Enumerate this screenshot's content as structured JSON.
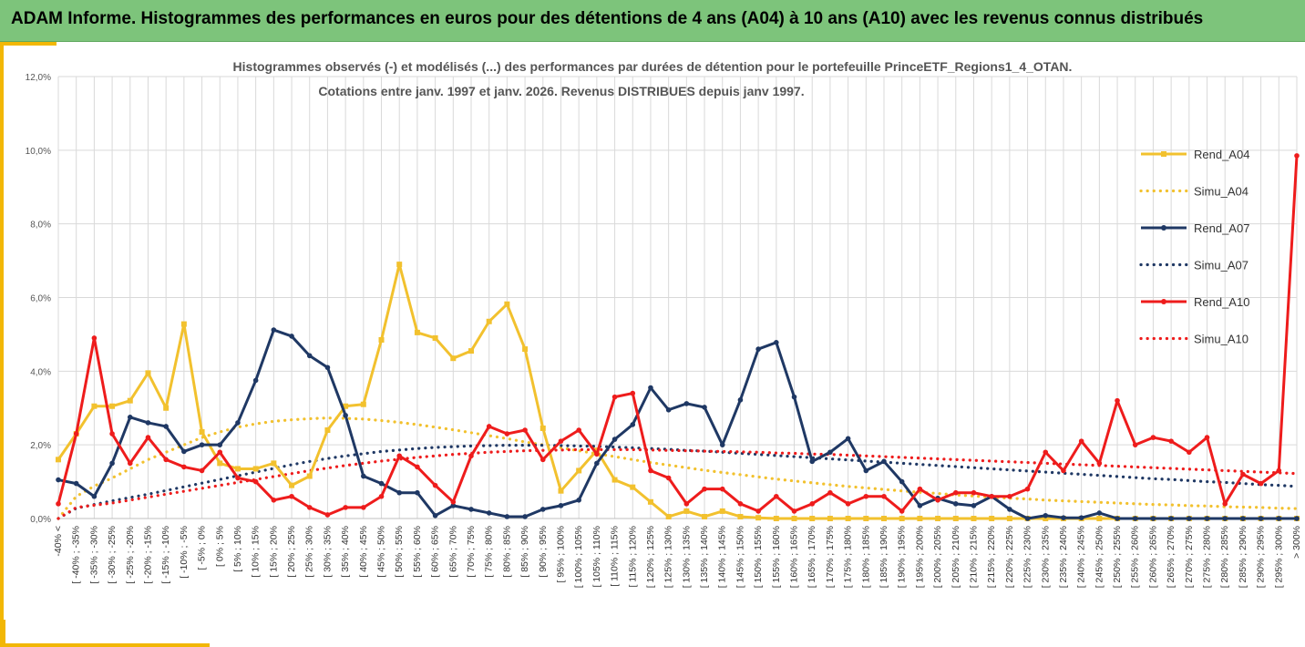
{
  "banner": {
    "title": "ADAM Informe. Histogrammes des performances en euros pour des détentions de 4 ans (A04) à 10 ans (A10) avec les revenus connus distribués"
  },
  "colors": {
    "banner_bg": "#7dc47b",
    "accent": "#f2b705",
    "A04": "#f2c12e",
    "A07": "#1f3864",
    "A10": "#ee1c1c",
    "grid": "#d9d9d9"
  },
  "chart_data": {
    "type": "line",
    "title_lines": [
      "Histogrammes observés (-) et modélisés (...) des performances par durées de détention pour  le portefeuille PrinceETF_Regions1_4_OTAN.",
      "Cotations  entre janv. 1997 et janv. 2026. Revenus DISTRIBUES depuis janv 1997."
    ],
    "ylim": [
      0,
      12
    ],
    "yticks": [
      "0,0%",
      "2,0%",
      "4,0%",
      "6,0%",
      "8,0%",
      "10,0%",
      "12,0%"
    ],
    "ytick_values": [
      0,
      2,
      4,
      6,
      8,
      10,
      12
    ],
    "categories": [
      "-40% <",
      "[ -40% ; -35%",
      "[ -35% ; -30%",
      "[ -30% ; -25%",
      "[ -25% ; -20%",
      "[ -20% ; -15%",
      "[ -15% ; -10%",
      "[ -10% ; -5%",
      "[ -5% ; 0%",
      "[ 0% ; 5%",
      "[ 5% ; 10%",
      "[ 10% ; 15%",
      "[ 15% ; 20%",
      "[ 20% ; 25%",
      "[ 25% ; 30%",
      "[ 30% ; 35%",
      "[ 35% ; 40%",
      "[ 40% ; 45%",
      "[ 45% ; 50%",
      "[ 50% ; 55%",
      "[ 55% ; 60%",
      "[ 60% ; 65%",
      "[ 65% ; 70%",
      "[ 70% ; 75%",
      "[ 75% ; 80%",
      "[ 80% ; 85%",
      "[ 85% ; 90%",
      "[ 90% ; 95%",
      "[ 95% ; 100%",
      "[ 100% ; 105%",
      "[ 105% ; 110%",
      "[ 110% ; 115%",
      "[ 115% ; 120%",
      "[ 120% ; 125%",
      "[ 125% ; 130%",
      "[ 130% ; 135%",
      "[ 135% ; 140%",
      "[ 140% ; 145%",
      "[ 145% ; 150%",
      "[ 150% ; 155%",
      "[ 155% ; 160%",
      "[ 160% ; 165%",
      "[ 165% ; 170%",
      "[ 170% ; 175%",
      "[ 175% ; 180%",
      "[ 180% ; 185%",
      "[ 185% ; 190%",
      "[ 190% ; 195%",
      "[ 195% ; 200%",
      "[ 200% ; 205%",
      "[ 205% ; 210%",
      "[ 210% ; 215%",
      "[ 215% ; 220%",
      "[ 220% ; 225%",
      "[ 225% ; 230%",
      "[ 230% ; 235%",
      "[ 235% ; 240%",
      "[ 240% ; 245%",
      "[ 245% ; 250%",
      "[ 250% ; 255%",
      "[ 255% ; 260%",
      "[ 260% ; 265%",
      "[ 265% ; 270%",
      "[ 270% ; 275%",
      "[ 275% ; 280%",
      "[ 280% ; 285%",
      "[ 285% ; 290%",
      "[ 290% ; 295%",
      "[ 295% ; 300%",
      "> 300%"
    ],
    "series": [
      {
        "name": "Rend_A04",
        "style": "solid",
        "marker": "square",
        "color": "#f2c12e",
        "values": [
          1.6,
          2.3,
          3.05,
          3.05,
          3.2,
          3.95,
          3.0,
          5.28,
          2.35,
          1.5,
          1.35,
          1.35,
          1.5,
          0.9,
          1.15,
          2.4,
          3.05,
          3.1,
          4.85,
          6.9,
          5.05,
          4.9,
          4.35,
          4.55,
          5.35,
          5.82,
          4.6,
          2.45,
          0.75,
          1.3,
          1.85,
          1.05,
          0.85,
          0.45,
          0.05,
          0.2,
          0.05,
          0.2,
          0.05,
          0.02,
          0,
          0,
          0,
          0,
          0,
          0,
          0,
          0,
          0,
          0,
          0,
          0,
          0,
          0,
          0,
          0,
          0,
          0,
          0,
          0,
          0,
          0,
          0,
          0,
          0,
          0,
          0,
          0,
          0,
          0
        ]
      },
      {
        "name": "Simu_A04",
        "style": "dotted",
        "color": "#f2c12e",
        "values": [
          0.0,
          0.6,
          0.88,
          1.1,
          1.35,
          1.6,
          1.8,
          2.0,
          2.2,
          2.35,
          2.48,
          2.57,
          2.64,
          2.68,
          2.71,
          2.73,
          2.72,
          2.7,
          2.66,
          2.61,
          2.55,
          2.48,
          2.41,
          2.33,
          2.25,
          2.17,
          2.08,
          2.0,
          1.92,
          1.84,
          1.76,
          1.68,
          1.6,
          1.52,
          1.45,
          1.38,
          1.31,
          1.25,
          1.19,
          1.13,
          1.07,
          1.02,
          0.97,
          0.92,
          0.87,
          0.83,
          0.79,
          0.75,
          0.71,
          0.68,
          0.64,
          0.61,
          0.58,
          0.55,
          0.53,
          0.5,
          0.48,
          0.46,
          0.44,
          0.42,
          0.4,
          0.38,
          0.37,
          0.35,
          0.34,
          0.32,
          0.31,
          0.3,
          0.28,
          0.27
        ]
      },
      {
        "name": "Rend_A07",
        "style": "solid",
        "marker": "circle",
        "color": "#1f3864",
        "values": [
          1.05,
          0.95,
          0.6,
          1.5,
          2.75,
          2.6,
          2.5,
          1.82,
          2.0,
          2.0,
          2.6,
          3.75,
          5.12,
          4.95,
          4.42,
          4.1,
          2.8,
          1.15,
          0.95,
          0.7,
          0.7,
          0.08,
          0.35,
          0.25,
          0.15,
          0.05,
          0.05,
          0.25,
          0.35,
          0.5,
          1.5,
          2.15,
          2.55,
          3.55,
          2.95,
          3.12,
          3.02,
          2.0,
          3.22,
          4.6,
          4.78,
          3.3,
          1.55,
          1.8,
          2.17,
          1.3,
          1.55,
          1.0,
          0.35,
          0.55,
          0.4,
          0.35,
          0.6,
          0.25,
          0.0,
          0.08,
          0.02,
          0.02,
          0.15,
          0.0,
          0.0,
          0.0,
          0.0,
          0.0,
          0.0,
          0.0,
          0.0,
          0.0,
          0.0,
          0.0
        ]
      },
      {
        "name": "Simu_A07",
        "style": "dotted",
        "color": "#1f3864",
        "values": [
          0.0,
          0.28,
          0.38,
          0.48,
          0.57,
          0.66,
          0.76,
          0.86,
          0.96,
          1.06,
          1.16,
          1.26,
          1.36,
          1.46,
          1.55,
          1.63,
          1.7,
          1.76,
          1.82,
          1.86,
          1.9,
          1.93,
          1.95,
          1.97,
          1.98,
          1.99,
          1.99,
          1.99,
          1.98,
          1.97,
          1.96,
          1.94,
          1.92,
          1.9,
          1.88,
          1.85,
          1.83,
          1.8,
          1.77,
          1.74,
          1.71,
          1.68,
          1.65,
          1.62,
          1.59,
          1.56,
          1.53,
          1.5,
          1.47,
          1.44,
          1.41,
          1.38,
          1.35,
          1.32,
          1.29,
          1.26,
          1.23,
          1.2,
          1.17,
          1.14,
          1.11,
          1.08,
          1.06,
          1.03,
          1.0,
          0.98,
          0.95,
          0.92,
          0.9,
          0.87
        ]
      },
      {
        "name": "Rend_A10",
        "style": "solid",
        "marker": "circle",
        "color": "#ee1c1c",
        "values": [
          0.4,
          2.3,
          4.9,
          2.3,
          1.5,
          2.2,
          1.6,
          1.4,
          1.3,
          1.8,
          1.1,
          1.0,
          0.5,
          0.6,
          0.3,
          0.1,
          0.3,
          0.3,
          0.6,
          1.7,
          1.4,
          0.9,
          0.45,
          1.7,
          2.5,
          2.3,
          2.4,
          1.6,
          2.1,
          2.4,
          1.75,
          3.3,
          3.4,
          1.3,
          1.1,
          0.4,
          0.8,
          0.8,
          0.4,
          0.2,
          0.6,
          0.2,
          0.4,
          0.7,
          0.4,
          0.6,
          0.6,
          0.2,
          0.8,
          0.5,
          0.7,
          0.7,
          0.6,
          0.6,
          0.8,
          1.8,
          1.3,
          2.1,
          1.5,
          3.2,
          2.0,
          2.2,
          2.1,
          1.8,
          2.2,
          0.4,
          1.2,
          0.95,
          1.3,
          9.85
        ]
      },
      {
        "name": "Simu_A10",
        "style": "dotted",
        "color": "#ee1c1c",
        "values": [
          0.0,
          0.3,
          0.36,
          0.42,
          0.5,
          0.58,
          0.66,
          0.74,
          0.82,
          0.9,
          0.98,
          1.06,
          1.14,
          1.22,
          1.3,
          1.37,
          1.44,
          1.5,
          1.56,
          1.61,
          1.66,
          1.7,
          1.74,
          1.77,
          1.8,
          1.82,
          1.84,
          1.85,
          1.86,
          1.87,
          1.87,
          1.87,
          1.87,
          1.86,
          1.85,
          1.84,
          1.83,
          1.82,
          1.81,
          1.8,
          1.78,
          1.77,
          1.75,
          1.74,
          1.72,
          1.7,
          1.68,
          1.66,
          1.64,
          1.62,
          1.6,
          1.58,
          1.56,
          1.54,
          1.52,
          1.5,
          1.48,
          1.46,
          1.44,
          1.42,
          1.4,
          1.38,
          1.36,
          1.34,
          1.32,
          1.3,
          1.28,
          1.26,
          1.24,
          1.22
        ]
      }
    ],
    "legend": [
      "Rend_A04",
      "Simu_A04",
      "Rend_A07",
      "Simu_A07",
      "Rend_A10",
      "Simu_A10"
    ],
    "legend_position": "right",
    "grid": true
  }
}
